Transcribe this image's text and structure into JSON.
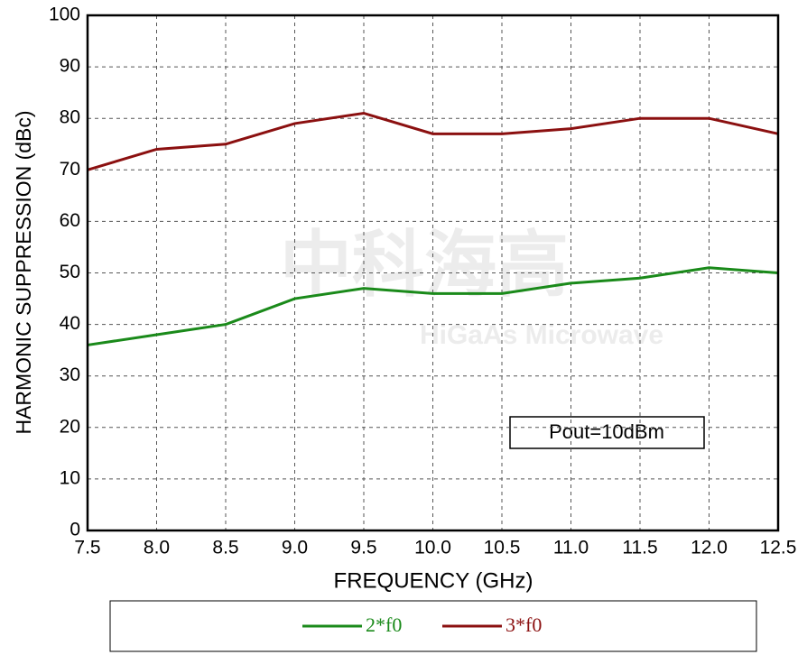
{
  "chart_data": {
    "type": "line",
    "x_label": "FREQUENCY (GHz)",
    "y_label": "HARMONIC SUPPRESSION (dBc)",
    "annotation": "Pout=10dBm",
    "watermark": [
      "中科海高",
      "HiGaAs Microwave"
    ],
    "x": [
      7.5,
      8.0,
      8.5,
      9.0,
      9.5,
      10.0,
      10.5,
      11.0,
      11.5,
      12.0,
      12.5
    ],
    "series": [
      {
        "name": "2*f0",
        "color": "#1a8a1a",
        "values": [
          36,
          38,
          40,
          45,
          47,
          46,
          46,
          48,
          49,
          51,
          50
        ]
      },
      {
        "name": "3*f0",
        "color": "#8b1010",
        "values": [
          70,
          74,
          75,
          79,
          81,
          77,
          77,
          78,
          80,
          80,
          77
        ]
      }
    ],
    "xlim": [
      7.5,
      12.5
    ],
    "xticks": [
      7.5,
      {
        "value": 8,
        "label": "8.0"
      },
      8.5,
      {
        "value": 9,
        "label": "9.0"
      },
      9.5,
      {
        "value": 10,
        "label": "10.0"
      },
      10.5,
      {
        "value": 11,
        "label": "11.0"
      },
      11.5,
      {
        "value": 12,
        "label": "12.0"
      },
      12.5
    ],
    "ylim": [
      0,
      100
    ],
    "yticks": [
      0,
      10,
      20,
      30,
      40,
      50,
      60,
      70,
      80,
      90,
      100
    ],
    "grid": true
  }
}
